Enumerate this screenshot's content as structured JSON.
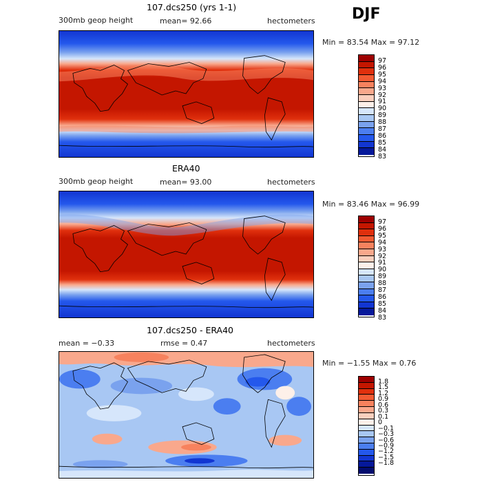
{
  "season": "DJF",
  "panels": [
    {
      "title": "107.dcs250 (yrs 1-1)",
      "variable": "300mb geop height",
      "mean_label": "mean=  92.66",
      "units": "hectometers",
      "min_max": "Min =  83.54 Max =  97.12",
      "colorbar_ticks": [
        "97",
        "96",
        "95",
        "94",
        "93",
        "92",
        "91",
        "90",
        "89",
        "88",
        "87",
        "86",
        "85",
        "84",
        "83"
      ],
      "colorbar_colors": [
        "#9e0000",
        "#c41600",
        "#e0300d",
        "#f25a32",
        "#f7825e",
        "#f9a88c",
        "#fbcfbd",
        "#fdf0e9",
        "#d6e6fb",
        "#a8c7f3",
        "#7aa2ee",
        "#4b7ef0",
        "#2458ec",
        "#1236d2",
        "#05189a"
      ]
    },
    {
      "title": "ERA40",
      "variable": "300mb geop height",
      "mean_label": "mean=  93.00",
      "units": "hectometers",
      "min_max": "Min =  83.46 Max =  96.99",
      "colorbar_ticks": [
        "97",
        "96",
        "95",
        "94",
        "93",
        "92",
        "91",
        "90",
        "89",
        "88",
        "87",
        "86",
        "85",
        "84",
        "83"
      ],
      "colorbar_colors": [
        "#9e0000",
        "#c41600",
        "#e0300d",
        "#f25a32",
        "#f7825e",
        "#f9a88c",
        "#fbcfbd",
        "#fdf0e9",
        "#d6e6fb",
        "#a8c7f3",
        "#7aa2ee",
        "#4b7ef0",
        "#2458ec",
        "#1236d2",
        "#05189a"
      ]
    },
    {
      "title": "107.dcs250 - ERA40",
      "mean_label": "mean =  −0.33",
      "rmse_label": "rmse =   0.47",
      "units": "hectometers",
      "min_max": "Min =  −1.55 Max =   0.76",
      "colorbar_ticks": [
        "1.8",
        "1.5",
        "1.2",
        "0.9",
        "0.6",
        "0.3",
        "0.1",
        "0",
        "−0.1",
        "−0.3",
        "−0.6",
        "−0.9",
        "−1.2",
        "−1.5",
        "−1.8"
      ],
      "colorbar_colors": [
        "#9e0000",
        "#c41600",
        "#e0300d",
        "#f25a32",
        "#f7825e",
        "#f9a88c",
        "#fbcfbd",
        "#fdf0e9",
        "#d6e6fb",
        "#a8c7f3",
        "#7aa2ee",
        "#4b7ef0",
        "#2458ec",
        "#1236d2",
        "#05189a",
        "#030c6e"
      ]
    }
  ]
}
